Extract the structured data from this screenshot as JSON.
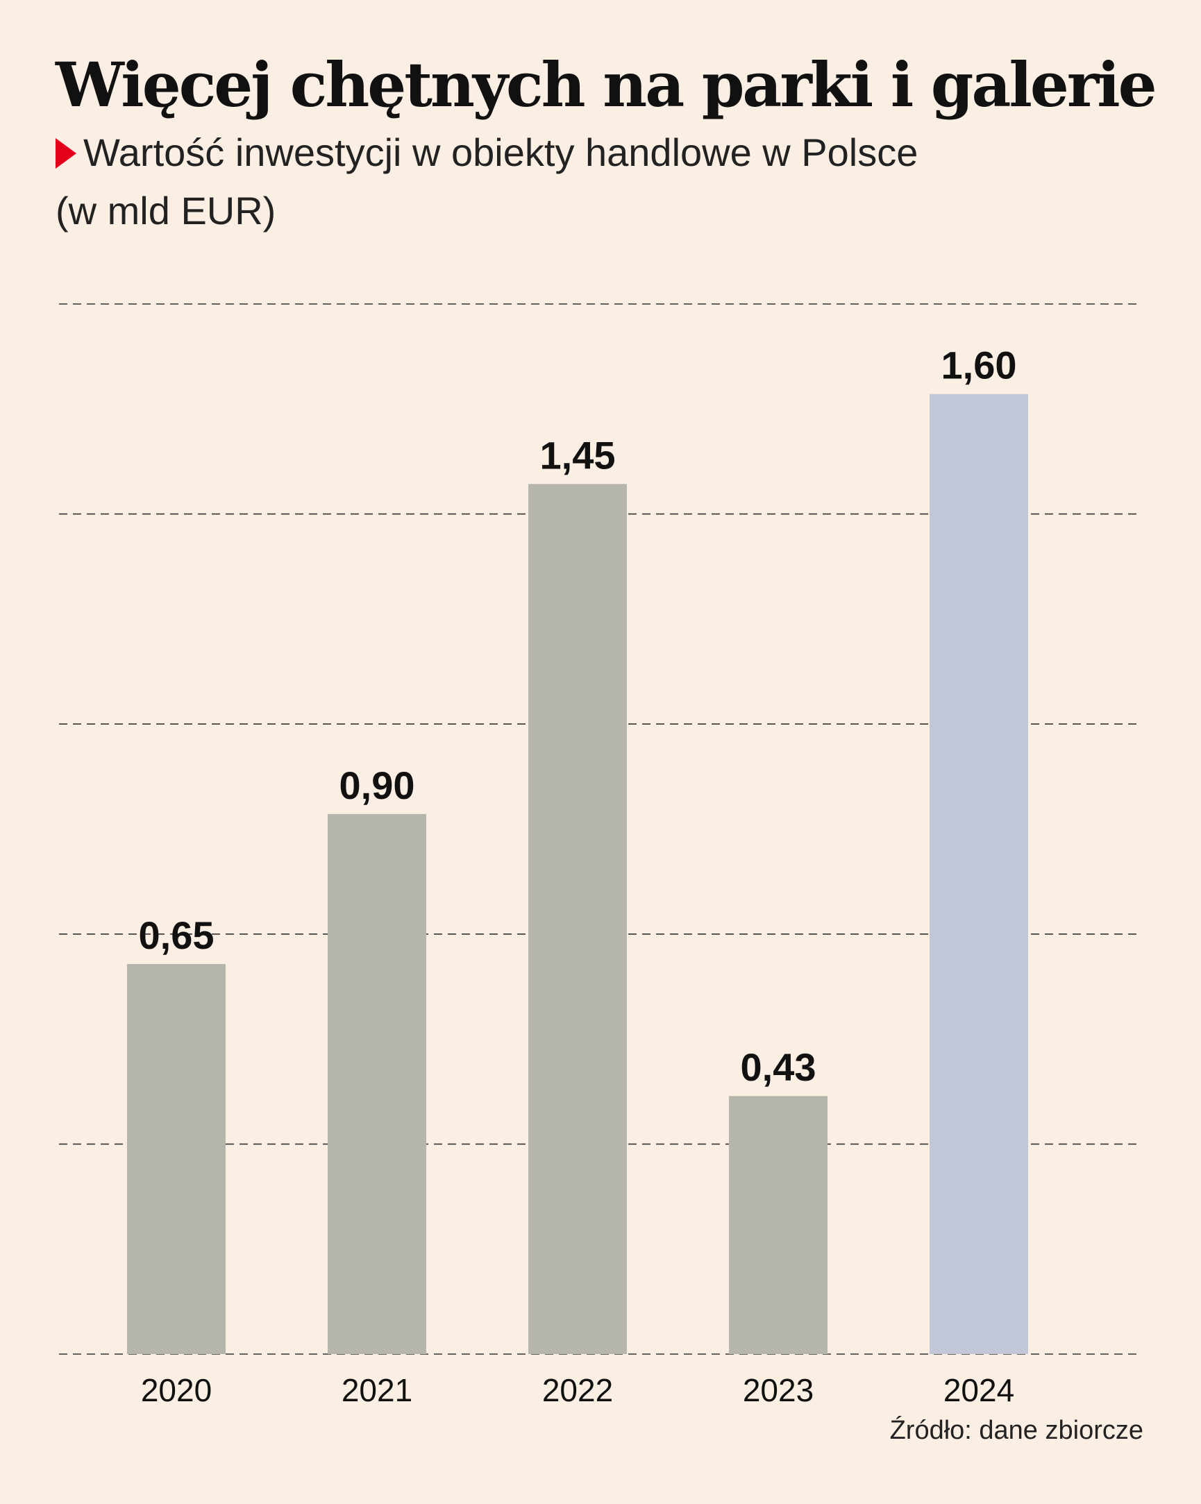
{
  "header": {
    "title": "Więcej chętnych na parki i galerie",
    "subtitle_line1": "Wartość inwestycji w obiekty handlowe w Polsce",
    "subtitle_line2": "(w mld EUR)"
  },
  "source": "Źródło: dane zbiorcze",
  "colors": {
    "background": "#fbeee3",
    "bar_default": "#b5b5ab",
    "bar_highlight": "#c2c7d8",
    "marker": "#e3001b",
    "grid": "#333333"
  },
  "chart_data": {
    "type": "bar",
    "title": "Więcej chętnych na parki i galerie",
    "subtitle": "Wartość inwestycji w obiekty handlowe w Polsce (w mld EUR)",
    "categories": [
      "2020",
      "2021",
      "2022",
      "2023",
      "2024"
    ],
    "values": [
      0.65,
      0.9,
      1.45,
      0.43,
      1.6
    ],
    "value_labels": [
      "0,65",
      "0,90",
      "1,45",
      "0,43",
      "1,60"
    ],
    "highlight_index": 4,
    "ylim": [
      0,
      1.75
    ],
    "gridlines": [
      0,
      0.35,
      0.7,
      1.05,
      1.4,
      1.75
    ],
    "grid": "dashed horizontal",
    "xlabel": "",
    "ylabel": ""
  }
}
